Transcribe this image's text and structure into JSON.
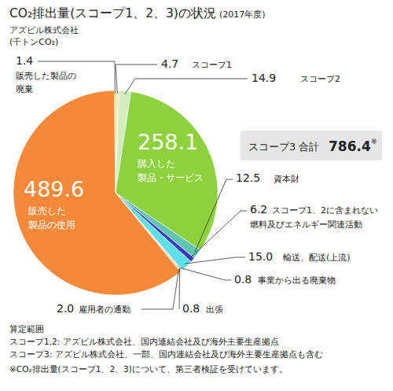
{
  "chart_data": {
    "type": "pie",
    "title": "CO₂排出量(スコープ1、2、3)の状況",
    "subtitle": "(2017年度)",
    "company": "アズビル株式会社",
    "unit": "(千トンCO₂)",
    "categories": [
      [
        "スコープ1"
      ],
      [
        "スコープ2"
      ],
      [
        "購入した",
        "製品・サービス"
      ],
      [
        "資本財"
      ],
      [
        "スコープ1、2に含まれない",
        "燃料及びエネルギー関連活動"
      ],
      [
        "輸送、配送(上流)"
      ],
      [
        "事業から出る廃棄物"
      ],
      [
        "出張"
      ],
      [
        "雇用者の通勤"
      ],
      [
        "販売した",
        "製品の使用"
      ],
      [
        "販売した製品の",
        "廃棄"
      ]
    ],
    "values": [
      4.7,
      14.9,
      258.1,
      12.5,
      6.2,
      15.0,
      0.8,
      0.8,
      2.0,
      489.6,
      1.4
    ],
    "value_labels": [
      "4.7",
      "14.9",
      "258.1",
      "12.5",
      "6.2",
      "15.0",
      "0.8",
      "0.8",
      "2.0",
      "489.6",
      "1.4"
    ],
    "colors": [
      "#e9efc4",
      "#d3ecbd",
      "#8dd13e",
      "#5fc5b0",
      "#3737c8",
      "#5ee0ea",
      "#9e9e9e",
      "#cfcfcf",
      "#f6c98c",
      "#f5893a",
      "#f3cf00"
    ],
    "data_labels": true,
    "scope3_label": "スコープ3 合計",
    "scope3_total": 786.4,
    "scope3_mark": "※",
    "notes": [
      "算定範囲",
      "スコープ1,2: アズビル株式会社、国内連結会社及び海外主要生産拠点",
      "スコープ3: アズビル株式会社、一部、国内連結会社及び海外主要生産拠点も含む",
      "※CO₂排出量(スコープ1、2、3)について、第三者検証を受けています。"
    ]
  }
}
